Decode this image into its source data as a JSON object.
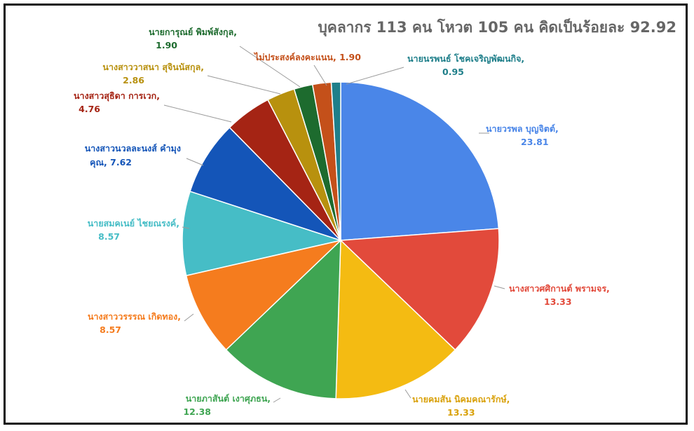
{
  "chart_data": {
    "type": "pie",
    "title": "บุคลากร 113 คน โหวต 105 คน คิดเป็นร้อยละ 92.92",
    "slices": [
      {
        "name": "นายวรพล บุญจิตต์",
        "value": 23.81,
        "value_label": "23.81",
        "color": "#4a86e8"
      },
      {
        "name": "นางสาวศศิกานต์ พรามจร",
        "value": 13.33,
        "value_label": "13.33",
        "color": "#e24a3b"
      },
      {
        "name": "นายคมสัน นิคมคณารักษ์",
        "value": 13.33,
        "value_label": "13.33",
        "color": "#f4bb12"
      },
      {
        "name": "นายภาสันต์ เงาศุภธน",
        "value": 12.38,
        "value_label": "12.38",
        "color": "#3fa552"
      },
      {
        "name": "นางสาววรรรณ เกิดทอง",
        "value": 8.57,
        "value_label": "8.57",
        "color": "#f57c1e"
      },
      {
        "name": "นายสมคเนย์ ไชยณรงค์",
        "value": 8.57,
        "value_label": "8.57",
        "color": "#46bdc6"
      },
      {
        "name": "นางสาวนวลละนงส์ คำมุงคุณ",
        "value": 7.62,
        "value_label": "7.62",
        "color": "#1455b8"
      },
      {
        "name": "นางสาวสุธิดา การเวก",
        "value": 4.76,
        "value_label": "4.76",
        "color": "#a52414"
      },
      {
        "name": "นางสาววาสนา สุจินนัสกุล",
        "value": 2.86,
        "value_label": "2.86",
        "color": "#b8910e"
      },
      {
        "name": "นายการุณย์ พิมพ์สังกุล",
        "value": 1.9,
        "value_label": "1.90",
        "color": "#1d6b2e"
      },
      {
        "name": "ไม่ประสงค์ลงคะแนน",
        "value": 1.9,
        "value_label": "1.90",
        "color": "#c4501a"
      },
      {
        "name": "นายนรพนธ์ โชคเจริญพัฒนกิจ",
        "value": 0.95,
        "value_label": "0.95",
        "color": "#1f7f8a"
      }
    ]
  }
}
